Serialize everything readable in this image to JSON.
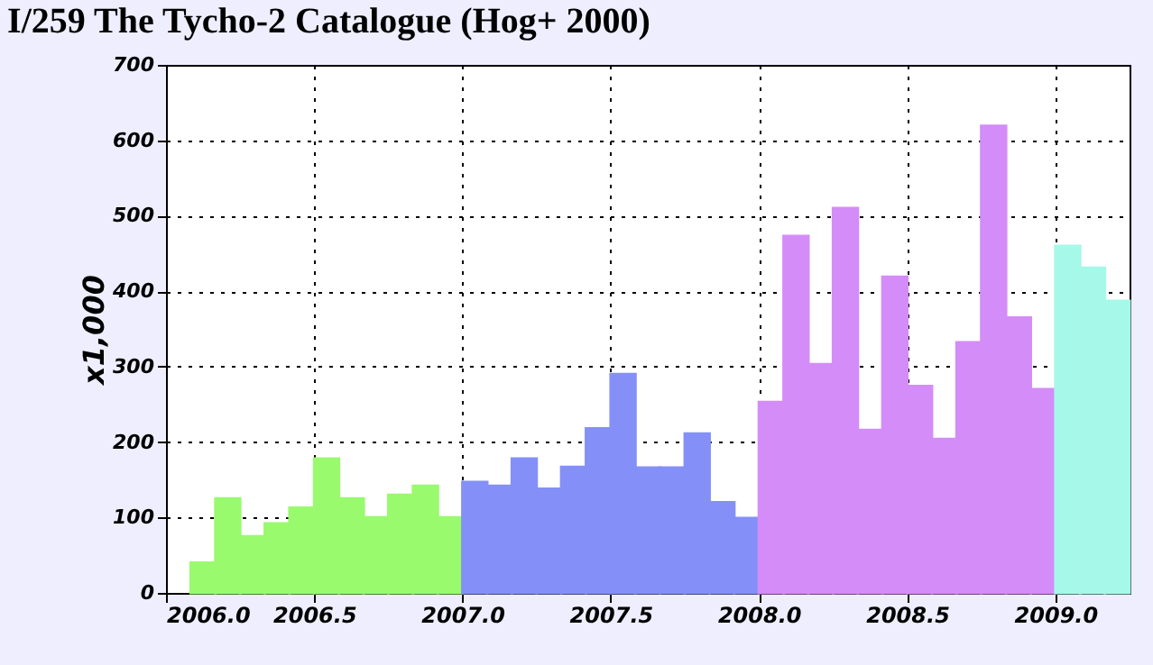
{
  "chart_data": {
    "type": "histogram",
    "title": "I/259 The Tycho-2 Catalogue (Hog+ 2000)",
    "ylabel": "x1,000",
    "bins": [
      2006.0833,
      2006.1667,
      2006.25,
      2006.3333,
      2006.4167,
      2006.5,
      2006.5833,
      2006.6667,
      2006.75,
      2006.8333,
      2006.9167,
      2007.0,
      2007.0833,
      2007.1667,
      2007.25,
      2007.3333,
      2007.4167,
      2007.5,
      2007.5833,
      2007.6667,
      2007.75,
      2007.8333,
      2007.9167,
      2008.0,
      2008.0833,
      2008.1667,
      2008.25,
      2008.3333,
      2008.4167,
      2008.5,
      2008.5833,
      2008.6667,
      2008.75,
      2008.8333,
      2008.9167,
      2009.0,
      2009.0833,
      2009.1667,
      2009.25
    ],
    "values": [
      40,
      125,
      75,
      92,
      113,
      178,
      125,
      100,
      130,
      142,
      100,
      147,
      142,
      178,
      138,
      167,
      218,
      290,
      166,
      166,
      211,
      120,
      99,
      253,
      473,
      303,
      510,
      216,
      419,
      274,
      204,
      332,
      619,
      365,
      270,
      460,
      431,
      387
    ],
    "colors": [
      "#99fa6e",
      "#99fa6e",
      "#99fa6e",
      "#99fa6e",
      "#99fa6e",
      "#99fa6e",
      "#99fa6e",
      "#99fa6e",
      "#99fa6e",
      "#99fa6e",
      "#99fa6e",
      "#8490f8",
      "#8490f8",
      "#8490f8",
      "#8490f8",
      "#8490f8",
      "#8490f8",
      "#8490f8",
      "#8490f8",
      "#8490f8",
      "#8490f8",
      "#8490f8",
      "#8490f8",
      "#d48cf8",
      "#d48cf8",
      "#d48cf8",
      "#d48cf8",
      "#d48cf8",
      "#d48cf8",
      "#d48cf8",
      "#d48cf8",
      "#d48cf8",
      "#d48cf8",
      "#d48cf8",
      "#d48cf8",
      "#a6f8e8",
      "#a6f8e8",
      "#a6f8e8"
    ],
    "xlim": [
      2006.0,
      2009.25
    ],
    "xticks": [
      {
        "value": 2006.0,
        "label": "2006.0"
      },
      {
        "value": 2006.5,
        "label": "2006.5"
      },
      {
        "value": 2007.0,
        "label": "2007.0"
      },
      {
        "value": 2007.5,
        "label": "2007.5"
      },
      {
        "value": 2008.0,
        "label": "2008.0"
      },
      {
        "value": 2008.5,
        "label": "2008.5"
      },
      {
        "value": 2009.0,
        "label": "2009.0"
      }
    ],
    "ylim": [
      0,
      700
    ],
    "yticks": [
      0,
      100,
      200,
      300,
      400,
      500,
      600,
      700
    ],
    "grid": true
  }
}
